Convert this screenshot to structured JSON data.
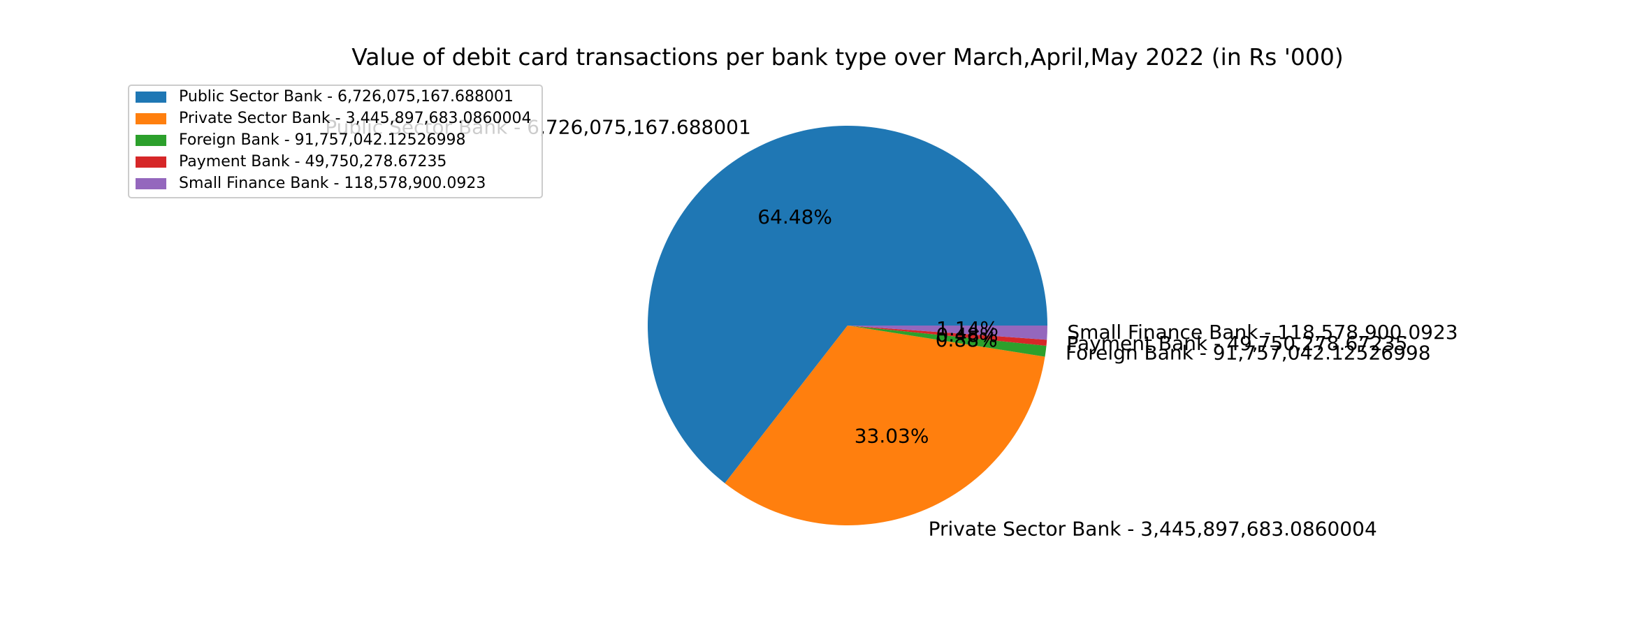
{
  "chart_data": {
    "type": "pie",
    "title": "Value of debit card transactions per bank type over March,April,May 2022 (in Rs '000)",
    "categories": [
      "Public Sector Bank",
      "Private Sector Bank",
      "Foreign Bank",
      "Payment Bank",
      "Small Finance Bank"
    ],
    "values": [
      6726075167.688001,
      3445897683.0860004,
      91757042.12526998,
      49750278.67235,
      118578900.0923
    ],
    "labels": [
      "Public Sector Bank - 6,726,075,167.688001",
      "Private Sector Bank - 3,445,897,683.0860004",
      "Foreign Bank - 91,757,042.12526998",
      "Payment Bank - 49,750,278.67235",
      "Small Finance Bank - 118,578,900.0923"
    ],
    "percent_labels": [
      "64.48%",
      "33.03%",
      "0.88%",
      "0.48%",
      "1.14%"
    ],
    "colors": [
      "#1f77b4",
      "#ff7f0e",
      "#2ca02c",
      "#d62728",
      "#9467bd"
    ],
    "start_angle_deg": 0,
    "direction": "counterclockwise",
    "legend": {
      "placement": "top-left",
      "entries": [
        "Public Sector Bank - 6,726,075,167.688001",
        "Private Sector Bank - 3,445,897,683.0860004",
        "Foreign Bank - 91,757,042.12526998",
        "Payment Bank - 49,750,278.67235",
        "Small Finance Bank - 118,578,900.0923"
      ]
    }
  }
}
